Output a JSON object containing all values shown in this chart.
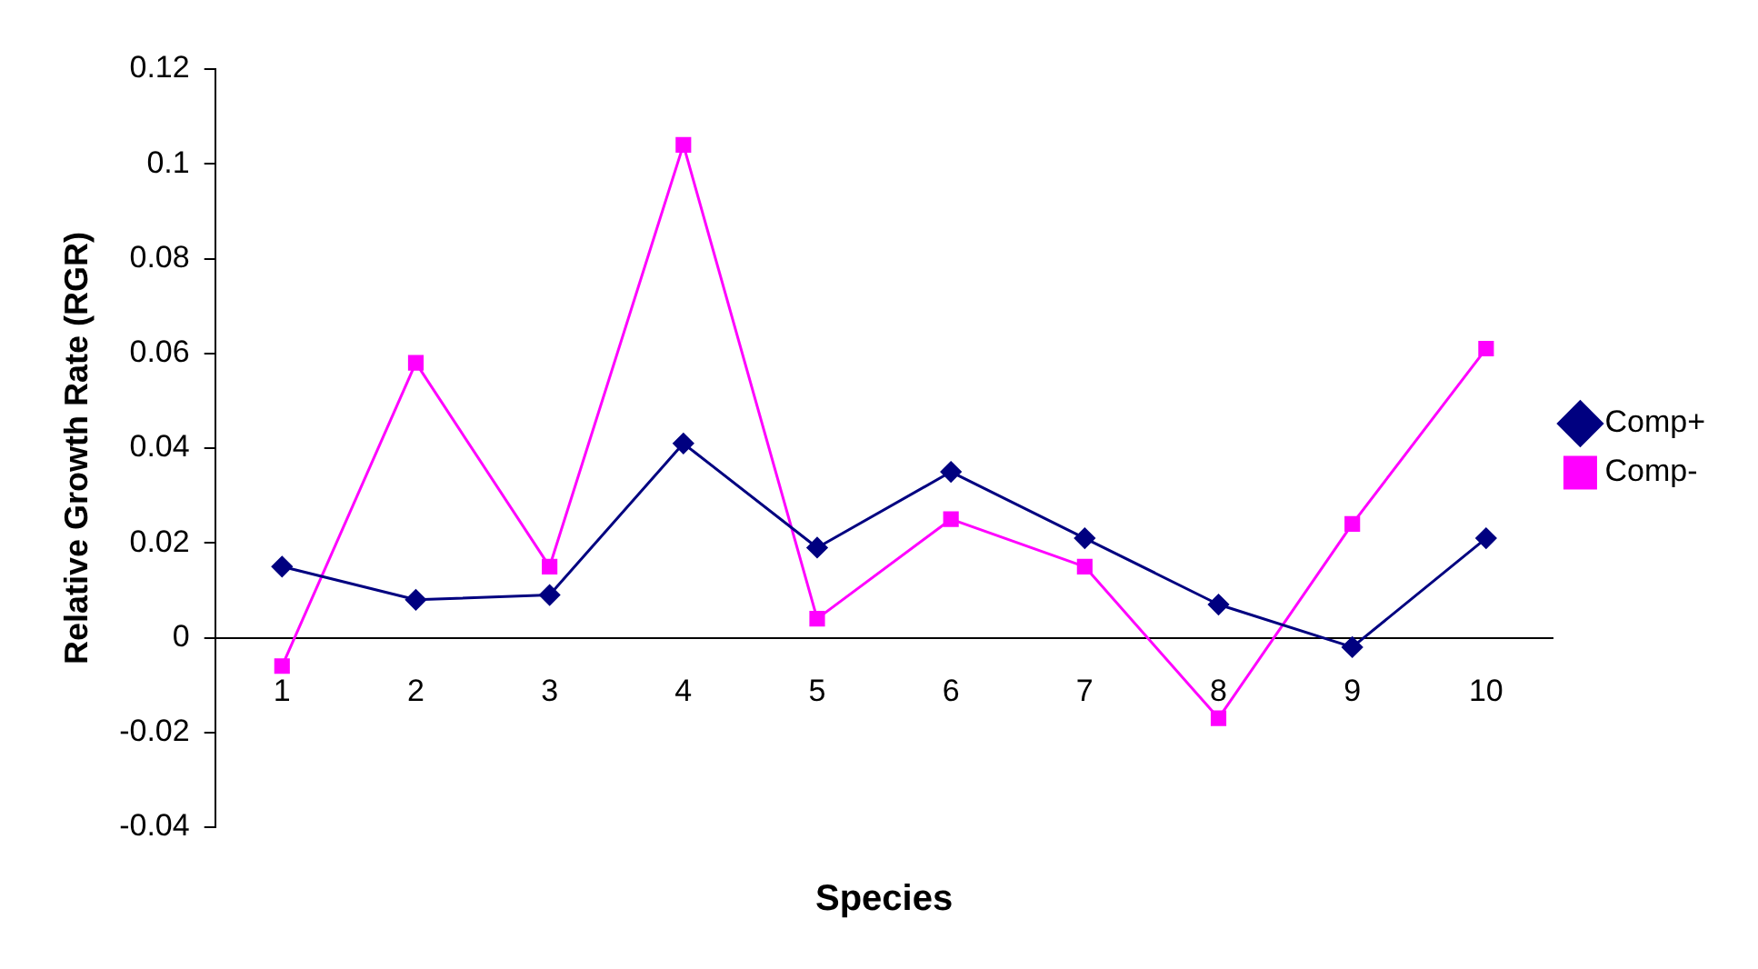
{
  "chart_data": {
    "type": "line",
    "xlabel": "Species",
    "ylabel": "Relative Growth Rate (RGR)",
    "categories": [
      "1",
      "2",
      "3",
      "4",
      "5",
      "6",
      "7",
      "8",
      "9",
      "10"
    ],
    "series": [
      {
        "name": "Comp+",
        "color": "#000080",
        "marker": "diamond",
        "values": [
          0.015,
          0.008,
          0.009,
          0.041,
          0.019,
          0.035,
          0.021,
          0.007,
          -0.002,
          0.021
        ]
      },
      {
        "name": "Comp-",
        "color": "#ff00ff",
        "marker": "square",
        "values": [
          -0.006,
          0.058,
          0.015,
          0.104,
          0.004,
          0.025,
          0.015,
          -0.017,
          0.024,
          0.061
        ]
      }
    ],
    "ylim": [
      -0.04,
      0.12
    ],
    "yticks": [
      -0.04,
      -0.02,
      0,
      0.02,
      0.04,
      0.06,
      0.08,
      0.1,
      0.12
    ],
    "grid": false,
    "legend": "right"
  }
}
